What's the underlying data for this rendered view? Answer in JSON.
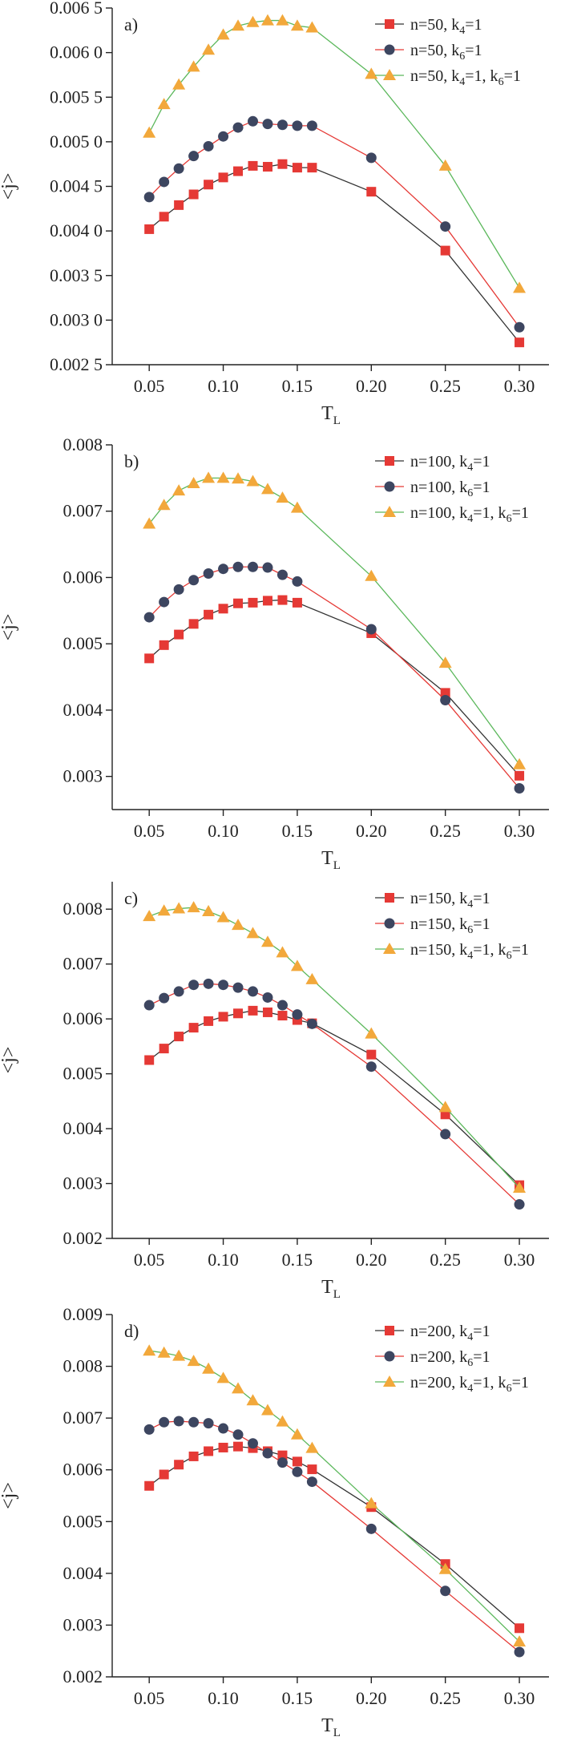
{
  "chart_data": [
    {
      "type": "line",
      "panel_label": "a)",
      "xlabel": "T",
      "xlabel_sub": "L",
      "ylabel": "<j>",
      "xlim": [
        0.025,
        0.32
      ],
      "ylim": [
        0.0025,
        0.0065
      ],
      "xticks": [
        0.05,
        0.1,
        0.15,
        0.2,
        0.25,
        0.3
      ],
      "xtick_labels": [
        "0.05",
        "0.10",
        "0.15",
        "0.20",
        "0.25",
        "0.30"
      ],
      "yticks": [
        0.0025,
        0.003,
        0.0035,
        0.004,
        0.0045,
        0.005,
        0.0055,
        0.006,
        0.0065
      ],
      "ytick_labels": [
        "0.002 5",
        "0.003 0",
        "0.003 5",
        "0.004 0",
        "0.004 5",
        "0.005 0",
        "0.005 5",
        "0.006 0",
        "0.006 5"
      ],
      "legend_placement": "top-right",
      "grid": false,
      "series": [
        {
          "name_main": "n=50, k",
          "name_parts": [
            [
              "n=50, k",
              "4",
              "=1"
            ]
          ],
          "marker": "square",
          "color": "#e53935",
          "line_color": "#333333",
          "x": [
            0.05,
            0.06,
            0.07,
            0.08,
            0.09,
            0.1,
            0.11,
            0.12,
            0.13,
            0.14,
            0.15,
            0.16,
            0.2,
            0.25,
            0.3
          ],
          "y": [
            0.00402,
            0.00416,
            0.00429,
            0.00441,
            0.00452,
            0.0046,
            0.00467,
            0.00473,
            0.00472,
            0.00475,
            0.00471,
            0.00471,
            0.00444,
            0.00378,
            0.00275
          ]
        },
        {
          "name_main": "n=50, k",
          "name_parts": [
            [
              "n=50, k",
              "6",
              "=1"
            ]
          ],
          "marker": "circle",
          "color": "#3d4660",
          "line_color": "#e53935",
          "x": [
            0.05,
            0.06,
            0.07,
            0.08,
            0.09,
            0.1,
            0.11,
            0.12,
            0.13,
            0.14,
            0.15,
            0.16,
            0.2,
            0.25,
            0.3
          ],
          "y": [
            0.00438,
            0.00455,
            0.0047,
            0.00484,
            0.00495,
            0.00506,
            0.00516,
            0.00523,
            0.0052,
            0.00519,
            0.00518,
            0.00518,
            0.00482,
            0.00405,
            0.00292
          ]
        },
        {
          "name_main": "n=50, k",
          "name_parts": [
            [
              "n=50, k",
              "4",
              "=1, k",
              "6",
              "=1"
            ]
          ],
          "marker": "triangle",
          "color": "#f2a83b",
          "line_color": "#5cb85c",
          "x": [
            0.05,
            0.06,
            0.07,
            0.08,
            0.09,
            0.1,
            0.11,
            0.12,
            0.13,
            0.14,
            0.15,
            0.16,
            0.2,
            0.25,
            0.3
          ],
          "y": [
            0.0051,
            0.00542,
            0.00564,
            0.00584,
            0.00603,
            0.0062,
            0.0063,
            0.00634,
            0.00636,
            0.00636,
            0.0063,
            0.00628,
            0.00576,
            0.00473,
            0.00336
          ]
        }
      ]
    },
    {
      "type": "line",
      "panel_label": "b)",
      "xlabel": "T",
      "xlabel_sub": "L",
      "ylabel": "<j>",
      "xlim": [
        0.025,
        0.32
      ],
      "ylim": [
        0.0025,
        0.008
      ],
      "xticks": [
        0.05,
        0.1,
        0.15,
        0.2,
        0.25,
        0.3
      ],
      "xtick_labels": [
        "0.05",
        "0.10",
        "0.15",
        "0.20",
        "0.25",
        "0.30"
      ],
      "yticks": [
        0.003,
        0.004,
        0.005,
        0.006,
        0.007,
        0.008
      ],
      "ytick_labels": [
        "0.003",
        "0.004",
        "0.005",
        "0.006",
        "0.007",
        "0.008"
      ],
      "legend_placement": "top-right",
      "grid": false,
      "series": [
        {
          "name_parts": [
            [
              "n=100, k",
              "4",
              "=1"
            ]
          ],
          "marker": "square",
          "color": "#e53935",
          "line_color": "#333333",
          "x": [
            0.05,
            0.06,
            0.07,
            0.08,
            0.09,
            0.1,
            0.11,
            0.12,
            0.13,
            0.14,
            0.15,
            0.2,
            0.25,
            0.3
          ],
          "y": [
            0.00478,
            0.00498,
            0.00514,
            0.0053,
            0.00544,
            0.00553,
            0.00561,
            0.00562,
            0.00565,
            0.00566,
            0.00562,
            0.00516,
            0.00426,
            0.00301
          ]
        },
        {
          "name_parts": [
            [
              "n=100, k",
              "6",
              "=1"
            ]
          ],
          "marker": "circle",
          "color": "#3d4660",
          "line_color": "#e53935",
          "x": [
            0.05,
            0.06,
            0.07,
            0.08,
            0.09,
            0.1,
            0.11,
            0.12,
            0.13,
            0.14,
            0.15,
            0.2,
            0.25,
            0.3
          ],
          "y": [
            0.0054,
            0.00563,
            0.00582,
            0.00596,
            0.00606,
            0.00613,
            0.00616,
            0.00616,
            0.00615,
            0.00604,
            0.00594,
            0.00522,
            0.00415,
            0.00282
          ]
        },
        {
          "name_parts": [
            [
              "n=100, k",
              "4",
              "=1, k",
              "6",
              "=1"
            ]
          ],
          "marker": "triangle",
          "color": "#f2a83b",
          "line_color": "#5cb85c",
          "x": [
            0.05,
            0.06,
            0.07,
            0.08,
            0.09,
            0.1,
            0.11,
            0.12,
            0.13,
            0.14,
            0.15,
            0.2,
            0.25,
            0.3
          ],
          "y": [
            0.00681,
            0.00709,
            0.00731,
            0.00742,
            0.0075,
            0.0075,
            0.00749,
            0.00745,
            0.00733,
            0.0072,
            0.00705,
            0.00602,
            0.00471,
            0.00318
          ]
        }
      ]
    },
    {
      "type": "line",
      "panel_label": "c)",
      "xlabel": "T",
      "xlabel_sub": "L",
      "ylabel": "<j>",
      "xlim": [
        0.025,
        0.32
      ],
      "ylim": [
        0.002,
        0.0085
      ],
      "xticks": [
        0.05,
        0.1,
        0.15,
        0.2,
        0.25,
        0.3
      ],
      "xtick_labels": [
        "0.05",
        "0.10",
        "0.15",
        "0.20",
        "0.25",
        "0.30"
      ],
      "yticks": [
        0.002,
        0.003,
        0.004,
        0.005,
        0.006,
        0.007,
        0.008
      ],
      "ytick_labels": [
        "0.002",
        "0.003",
        "0.004",
        "0.005",
        "0.006",
        "0.007",
        "0.008"
      ],
      "legend_placement": "top-right",
      "grid": false,
      "series": [
        {
          "name_parts": [
            [
              "n=150, k",
              "4",
              "=1"
            ]
          ],
          "marker": "square",
          "color": "#e53935",
          "line_color": "#333333",
          "x": [
            0.05,
            0.06,
            0.07,
            0.08,
            0.09,
            0.1,
            0.11,
            0.12,
            0.13,
            0.14,
            0.15,
            0.16,
            0.2,
            0.25,
            0.3
          ],
          "y": [
            0.00525,
            0.00546,
            0.00568,
            0.00584,
            0.00596,
            0.00604,
            0.0061,
            0.00615,
            0.00612,
            0.00606,
            0.00598,
            0.00592,
            0.00535,
            0.00426,
            0.00297
          ]
        },
        {
          "name_parts": [
            [
              "n=150, k",
              "6",
              "=1"
            ]
          ],
          "marker": "circle",
          "color": "#3d4660",
          "line_color": "#e53935",
          "x": [
            0.05,
            0.06,
            0.07,
            0.08,
            0.09,
            0.1,
            0.11,
            0.12,
            0.13,
            0.14,
            0.15,
            0.16,
            0.2,
            0.25,
            0.3
          ],
          "y": [
            0.00625,
            0.00638,
            0.0065,
            0.00662,
            0.00664,
            0.00662,
            0.00657,
            0.0065,
            0.00639,
            0.00625,
            0.00608,
            0.00591,
            0.00513,
            0.0039,
            0.00262
          ]
        },
        {
          "name_parts": [
            [
              "n=150, k",
              "4",
              "=1, k",
              "6",
              "=1"
            ]
          ],
          "marker": "triangle",
          "color": "#f2a83b",
          "line_color": "#5cb85c",
          "x": [
            0.05,
            0.06,
            0.07,
            0.08,
            0.09,
            0.1,
            0.11,
            0.12,
            0.13,
            0.14,
            0.15,
            0.16,
            0.2,
            0.25,
            0.3
          ],
          "y": [
            0.00787,
            0.00797,
            0.00801,
            0.00803,
            0.00796,
            0.00785,
            0.00771,
            0.00756,
            0.0074,
            0.00721,
            0.00696,
            0.00672,
            0.00573,
            0.00439,
            0.00292
          ]
        }
      ]
    },
    {
      "type": "line",
      "panel_label": "d)",
      "xlabel": "T",
      "xlabel_sub": "L",
      "ylabel": "<j>",
      "xlim": [
        0.025,
        0.32
      ],
      "ylim": [
        0.002,
        0.009
      ],
      "xticks": [
        0.05,
        0.1,
        0.15,
        0.2,
        0.25,
        0.3
      ],
      "xtick_labels": [
        "0.05",
        "0.10",
        "0.15",
        "0.20",
        "0.25",
        "0.30"
      ],
      "yticks": [
        0.002,
        0.003,
        0.004,
        0.005,
        0.006,
        0.007,
        0.008,
        0.009
      ],
      "ytick_labels": [
        "0.002",
        "0.003",
        "0.004",
        "0.005",
        "0.006",
        "0.007",
        "0.008",
        "0.009"
      ],
      "legend_placement": "top-right",
      "grid": false,
      "series": [
        {
          "name_parts": [
            [
              "n=200, k",
              "4",
              "=1"
            ]
          ],
          "marker": "square",
          "color": "#e53935",
          "line_color": "#333333",
          "x": [
            0.05,
            0.06,
            0.07,
            0.08,
            0.09,
            0.1,
            0.11,
            0.12,
            0.13,
            0.14,
            0.15,
            0.16,
            0.2,
            0.25,
            0.3
          ],
          "y": [
            0.00569,
            0.00591,
            0.0061,
            0.00626,
            0.00636,
            0.00643,
            0.00645,
            0.00642,
            0.00636,
            0.00628,
            0.00616,
            0.00601,
            0.00528,
            0.00418,
            0.00294
          ]
        },
        {
          "name_parts": [
            [
              "n=200, k",
              "6",
              "=1"
            ]
          ],
          "marker": "circle",
          "color": "#3d4660",
          "line_color": "#e53935",
          "x": [
            0.05,
            0.06,
            0.07,
            0.08,
            0.09,
            0.1,
            0.11,
            0.12,
            0.13,
            0.14,
            0.15,
            0.16,
            0.2,
            0.25,
            0.3
          ],
          "y": [
            0.00678,
            0.00692,
            0.00694,
            0.00692,
            0.0069,
            0.0068,
            0.00668,
            0.00651,
            0.00632,
            0.00614,
            0.00596,
            0.00577,
            0.00486,
            0.00366,
            0.00248
          ]
        },
        {
          "name_parts": [
            [
              "n=200, k",
              "4",
              "=1, k",
              "6",
              "=1"
            ]
          ],
          "marker": "triangle",
          "color": "#f2a83b",
          "line_color": "#5cb85c",
          "x": [
            0.05,
            0.06,
            0.07,
            0.08,
            0.09,
            0.1,
            0.11,
            0.12,
            0.13,
            0.14,
            0.15,
            0.16,
            0.2,
            0.25,
            0.3
          ],
          "y": [
            0.0083,
            0.00826,
            0.0082,
            0.0081,
            0.00795,
            0.00777,
            0.00757,
            0.00734,
            0.00715,
            0.00693,
            0.00668,
            0.00642,
            0.00535,
            0.00408,
            0.00268
          ]
        }
      ]
    }
  ]
}
